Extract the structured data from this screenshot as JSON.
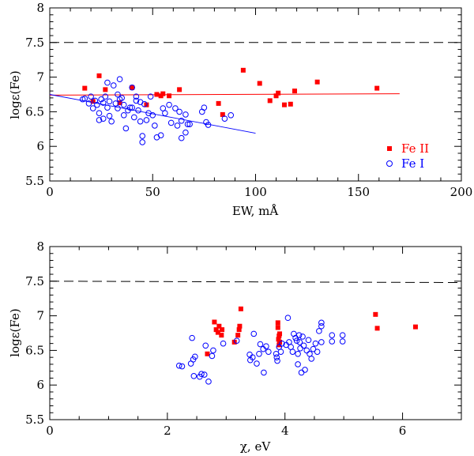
{
  "chart_data": [
    {
      "type": "scatter",
      "xlabel": "EW, mÅ",
      "ylabel": "logε(Fe)",
      "xlim": [
        0,
        200
      ],
      "ylim": [
        5.5,
        8
      ],
      "xticks": [
        0,
        50,
        100,
        150,
        200
      ],
      "yticks": [
        5.5,
        6,
        6.5,
        7,
        7.5,
        8
      ],
      "xtick_labels": [
        "0",
        "50",
        "100",
        "150",
        "200"
      ],
      "ytick_labels": [
        "5.5",
        "6",
        "6.5",
        "7",
        "7.5",
        "8"
      ],
      "reference_line": {
        "style": "dashed",
        "color": "#000000",
        "x": [
          0,
          200
        ],
        "y": [
          7.5,
          7.5
        ]
      },
      "fit_lines": [
        {
          "name": "Fe II fit",
          "color": "#ff0000",
          "x": [
            0,
            170
          ],
          "y": [
            6.74,
            6.76
          ]
        },
        {
          "name": "Fe I fit",
          "color": "#0000ff",
          "x": [
            0,
            100
          ],
          "y": [
            6.75,
            6.19
          ]
        }
      ],
      "legend": {
        "position": "bottom-right",
        "entries": [
          {
            "label": "Fe II",
            "color": "#ff0000",
            "marker": "filled-square"
          },
          {
            "label": "Fe I",
            "color": "#0000ff",
            "marker": "open-circle"
          }
        ]
      },
      "series": [
        {
          "name": "Fe II",
          "color": "#ff0000",
          "marker": "filled-square",
          "points": [
            [
              17,
              6.84
            ],
            [
              21,
              6.65
            ],
            [
              24,
              7.02
            ],
            [
              27,
              6.82
            ],
            [
              34,
              6.63
            ],
            [
              40,
              6.85
            ],
            [
              47,
              6.6
            ],
            [
              52,
              6.75
            ],
            [
              54,
              6.73
            ],
            [
              55,
              6.76
            ],
            [
              58,
              6.73
            ],
            [
              63,
              6.82
            ],
            [
              82,
              6.62
            ],
            [
              84,
              6.46
            ],
            [
              94,
              7.1
            ],
            [
              102,
              6.91
            ],
            [
              107,
              6.66
            ],
            [
              110,
              6.73
            ],
            [
              111,
              6.77
            ],
            [
              114,
              6.6
            ],
            [
              117,
              6.61
            ],
            [
              119,
              6.8
            ],
            [
              130,
              6.93
            ],
            [
              159,
              6.84
            ]
          ]
        },
        {
          "name": "Fe I",
          "color": "#0000ff",
          "marker": "open-circle",
          "points": [
            [
              16,
              6.68
            ],
            [
              17,
              6.69
            ],
            [
              19,
              6.62
            ],
            [
              20,
              6.72
            ],
            [
              21,
              6.55
            ],
            [
              22,
              6.66
            ],
            [
              23,
              6.6
            ],
            [
              24,
              6.48
            ],
            [
              24,
              6.38
            ],
            [
              25,
              6.68
            ],
            [
              26,
              6.63
            ],
            [
              26,
              6.4
            ],
            [
              27,
              6.72
            ],
            [
              28,
              6.92
            ],
            [
              28,
              6.56
            ],
            [
              29,
              6.65
            ],
            [
              29,
              6.44
            ],
            [
              30,
              6.36
            ],
            [
              31,
              6.88
            ],
            [
              32,
              6.62
            ],
            [
              33,
              6.75
            ],
            [
              33,
              6.55
            ],
            [
              34,
              6.97
            ],
            [
              34,
              6.68
            ],
            [
              35,
              6.7
            ],
            [
              36,
              6.6
            ],
            [
              36,
              6.45
            ],
            [
              37,
              6.26
            ],
            [
              38,
              6.52
            ],
            [
              39,
              6.56
            ],
            [
              40,
              6.85
            ],
            [
              40,
              6.56
            ],
            [
              41,
              6.42
            ],
            [
              42,
              6.66
            ],
            [
              42,
              6.72
            ],
            [
              43,
              6.52
            ],
            [
              44,
              6.64
            ],
            [
              44,
              6.36
            ],
            [
              45,
              6.15
            ],
            [
              45,
              6.06
            ],
            [
              46,
              6.61
            ],
            [
              47,
              6.38
            ],
            [
              48,
              6.48
            ],
            [
              49,
              6.72
            ],
            [
              50,
              6.45
            ],
            [
              51,
              6.3
            ],
            [
              52,
              6.13
            ],
            [
              54,
              6.16
            ],
            [
              55,
              6.55
            ],
            [
              56,
              6.48
            ],
            [
              58,
              6.6
            ],
            [
              59,
              6.34
            ],
            [
              61,
              6.55
            ],
            [
              62,
              6.3
            ],
            [
              63,
              6.5
            ],
            [
              64,
              6.37
            ],
            [
              64,
              6.12
            ],
            [
              66,
              6.46
            ],
            [
              66,
              6.2
            ],
            [
              67,
              6.32
            ],
            [
              68,
              6.32
            ],
            [
              74,
              6.5
            ],
            [
              75,
              6.56
            ],
            [
              76,
              6.35
            ],
            [
              77,
              6.31
            ],
            [
              85,
              6.4
            ],
            [
              88,
              6.45
            ]
          ]
        }
      ]
    },
    {
      "type": "scatter",
      "xlabel": "χ, eV",
      "ylabel": "logε(Fe)",
      "xlim": [
        0,
        7
      ],
      "ylim": [
        5.5,
        8
      ],
      "xticks": [
        0,
        2,
        4,
        6
      ],
      "yticks": [
        5.5,
        6,
        6.5,
        7,
        7.5,
        8
      ],
      "xtick_labels": [
        "0",
        "2",
        "4",
        "6"
      ],
      "ytick_labels": [
        "5.5",
        "6",
        "6.5",
        "7",
        "7.5",
        "8"
      ],
      "reference_line": {
        "style": "dashed",
        "color": "#000000",
        "x": [
          0,
          7
        ],
        "y": [
          7.5,
          7.48
        ]
      },
      "series": [
        {
          "name": "Fe II",
          "color": "#ff0000",
          "marker": "filled-square",
          "points": [
            [
              2.68,
              6.45
            ],
            [
              2.8,
              6.91
            ],
            [
              2.83,
              6.8
            ],
            [
              2.86,
              6.76
            ],
            [
              2.88,
              6.85
            ],
            [
              2.92,
              6.72
            ],
            [
              2.93,
              6.8
            ],
            [
              3.14,
              6.62
            ],
            [
              3.2,
              6.72
            ],
            [
              3.22,
              6.8
            ],
            [
              3.23,
              6.85
            ],
            [
              3.25,
              7.1
            ],
            [
              3.88,
              6.9
            ],
            [
              3.88,
              6.83
            ],
            [
              3.89,
              6.66
            ],
            [
              3.9,
              6.71
            ],
            [
              3.9,
              6.58
            ],
            [
              3.91,
              6.62
            ],
            [
              3.91,
              6.74
            ],
            [
              5.54,
              7.02
            ],
            [
              5.57,
              6.82
            ],
            [
              6.22,
              6.84
            ]
          ]
        },
        {
          "name": "Fe I",
          "color": "#0000ff",
          "marker": "open-circle",
          "points": [
            [
              2.2,
              6.28
            ],
            [
              2.25,
              6.27
            ],
            [
              2.4,
              6.31
            ],
            [
              2.42,
              6.68
            ],
            [
              2.44,
              6.37
            ],
            [
              2.45,
              6.13
            ],
            [
              2.47,
              6.41
            ],
            [
              2.55,
              6.12
            ],
            [
              2.58,
              6.16
            ],
            [
              2.63,
              6.15
            ],
            [
              2.65,
              6.57
            ],
            [
              2.7,
              6.05
            ],
            [
              2.76,
              6.42
            ],
            [
              2.78,
              6.5
            ],
            [
              2.95,
              6.6
            ],
            [
              3.18,
              6.64
            ],
            [
              3.4,
              6.44
            ],
            [
              3.41,
              6.36
            ],
            [
              3.45,
              6.4
            ],
            [
              3.47,
              6.74
            ],
            [
              3.52,
              6.31
            ],
            [
              3.56,
              6.45
            ],
            [
              3.58,
              6.59
            ],
            [
              3.63,
              6.52
            ],
            [
              3.64,
              6.18
            ],
            [
              3.68,
              6.56
            ],
            [
              3.72,
              6.48
            ],
            [
              3.85,
              6.45
            ],
            [
              3.86,
              6.4
            ],
            [
              3.87,
              6.35
            ],
            [
              3.9,
              6.55
            ],
            [
              3.93,
              6.48
            ],
            [
              3.95,
              6.6
            ],
            [
              4.02,
              6.58
            ],
            [
              4.05,
              6.97
            ],
            [
              4.07,
              6.62
            ],
            [
              4.1,
              6.55
            ],
            [
              4.13,
              6.48
            ],
            [
              4.15,
              6.74
            ],
            [
              4.18,
              6.68
            ],
            [
              4.2,
              6.64
            ],
            [
              4.22,
              6.3
            ],
            [
              4.22,
              6.45
            ],
            [
              4.24,
              6.72
            ],
            [
              4.25,
              6.62
            ],
            [
              4.26,
              6.53
            ],
            [
              4.28,
              6.18
            ],
            [
              4.3,
              6.7
            ],
            [
              4.32,
              6.57
            ],
            [
              4.34,
              6.22
            ],
            [
              4.37,
              6.5
            ],
            [
              4.4,
              6.65
            ],
            [
              4.42,
              6.45
            ],
            [
              4.45,
              6.38
            ],
            [
              4.48,
              6.52
            ],
            [
              4.52,
              6.6
            ],
            [
              4.55,
              6.48
            ],
            [
              4.58,
              6.78
            ],
            [
              4.62,
              6.62
            ],
            [
              4.62,
              6.85
            ],
            [
              4.62,
              6.9
            ],
            [
              4.8,
              6.72
            ],
            [
              4.8,
              6.63
            ],
            [
              4.98,
              6.72
            ],
            [
              4.98,
              6.63
            ]
          ]
        }
      ]
    }
  ]
}
